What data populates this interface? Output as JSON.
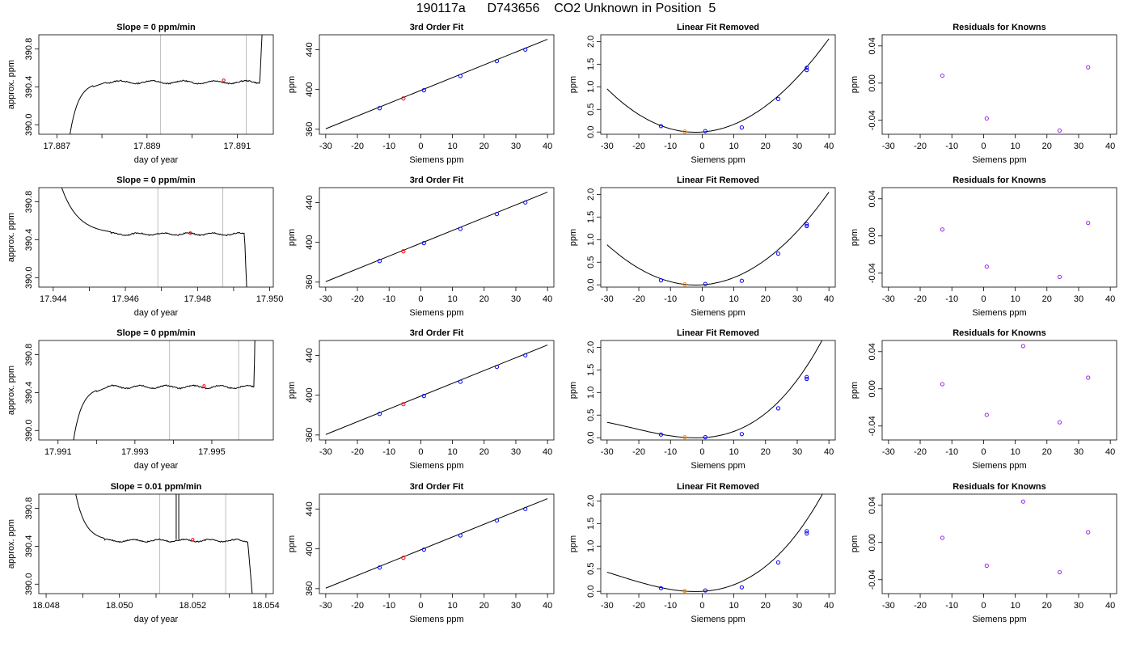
{
  "page": {
    "title": "190117a      D743656    CO2 Unknown in Position  5"
  },
  "colors": {
    "line": "#000000",
    "known_point": "#0000ff",
    "unknown_point": "#ff0000",
    "residual_point": "#a020f0",
    "removed_point": "#ff8c00",
    "window_line": "#bebebe"
  },
  "chart_data": [
    {
      "type": "line",
      "title": "Slope =  0  ppm/min",
      "xlabel": "day of year",
      "ylabel": "approx. ppm",
      "xlim": [
        17.8866,
        17.8918
      ],
      "ylim": [
        389.9,
        390.95
      ],
      "xticks": [
        17.887,
        17.889,
        17.891
      ],
      "xtick_labels": [
        "17.887",
        "17.889",
        "17.891"
      ],
      "minor_xticks": [
        17.888,
        17.89
      ],
      "yticks": [
        390.0,
        390.4,
        390.8
      ],
      "ytick_labels": [
        "390.0",
        "390.4",
        "390.8"
      ],
      "window": [
        17.8893,
        17.8912
      ],
      "unknown_point": [
        17.8907,
        390.47
      ],
      "trace": {
        "start": 17.8872,
        "rise_end": 17.8878,
        "flat_start": 17.8881,
        "flat_end": 17.8915,
        "end": 17.89162,
        "base": 390.45,
        "amp": 0.015
      }
    },
    {
      "type": "scatter",
      "title": "3rd Order Fit",
      "xlabel": "Siemens ppm",
      "ylabel": "ppm",
      "xlim": [
        -32,
        42
      ],
      "ylim": [
        355,
        455
      ],
      "xticks": [
        -30,
        -20,
        -10,
        0,
        10,
        20,
        30,
        40
      ],
      "xtick_labels": [
        "-30",
        "-20",
        "-10",
        "0",
        "10",
        "20",
        "30",
        "40"
      ],
      "yticks": [
        360,
        400,
        440
      ],
      "ytick_labels": [
        "360",
        "400",
        "440"
      ],
      "fit_line": [
        [
          -30,
          360.5
        ],
        [
          40,
          450.5
        ]
      ],
      "known_points": [
        [
          -13,
          381.2
        ],
        [
          1,
          399.2
        ],
        [
          12.5,
          413.5
        ],
        [
          24,
          428.5
        ],
        [
          33,
          440.1
        ]
      ],
      "unknown_points": [
        [
          -5.5,
          391.0
        ]
      ]
    },
    {
      "type": "scatter",
      "title": "Linear Fit Removed",
      "xlabel": "Siemens ppm",
      "ylabel": "ppm",
      "xlim": [
        -32,
        42
      ],
      "ylim": [
        -0.05,
        2.15
      ],
      "xticks": [
        -30,
        -20,
        -10,
        0,
        10,
        20,
        30,
        40
      ],
      "xtick_labels": [
        "-30",
        "-20",
        "-10",
        "0",
        "10",
        "20",
        "30",
        "40"
      ],
      "yticks": [
        0,
        0.5,
        1,
        1.5,
        2
      ],
      "ytick_labels": [
        "0.0",
        "0.5",
        "1.0",
        "1.5",
        "2.0"
      ],
      "curve": [
        0.0,
        0.005,
        0.0012,
        -9e-07
      ],
      "known_points": [
        [
          -13,
          0.13
        ],
        [
          1,
          0.02
        ],
        [
          12.5,
          0.1
        ],
        [
          24,
          0.73
        ],
        [
          33,
          1.37
        ],
        [
          33,
          1.42
        ]
      ],
      "unknown_points": [
        [
          -5.5,
          0.01
        ]
      ]
    },
    {
      "type": "scatter",
      "title": "Residuals for Knowns",
      "xlabel": "Siemens ppm",
      "ylabel": "ppm",
      "xlim": [
        -32,
        42
      ],
      "ylim": [
        -0.055,
        0.052
      ],
      "xticks": [
        -30,
        -20,
        -10,
        0,
        10,
        20,
        30,
        40
      ],
      "xtick_labels": [
        "-30",
        "-20",
        "-10",
        "0",
        "10",
        "20",
        "30",
        "40"
      ],
      "yticks": [
        -0.04,
        0,
        0.04
      ],
      "ytick_labels": [
        "-0.04",
        "0.00",
        "0.04"
      ],
      "points": [
        [
          -13,
          0.008
        ],
        [
          1,
          -0.038
        ],
        [
          24,
          -0.051
        ],
        [
          33,
          0.017
        ]
      ]
    },
    {
      "type": "line",
      "title": "Slope =  0  ppm/min",
      "xlabel": "day of year",
      "ylabel": "approx. ppm",
      "xlim": [
        17.9436,
        17.9501
      ],
      "ylim": [
        389.9,
        390.95
      ],
      "xticks": [
        17.944,
        17.946,
        17.948,
        17.95
      ],
      "xtick_labels": [
        "17.944",
        "17.946",
        "17.948",
        "17.950"
      ],
      "minor_xticks": [
        17.945,
        17.947,
        17.949
      ],
      "yticks": [
        390.0,
        390.4,
        390.8
      ],
      "ytick_labels": [
        "390.0",
        "390.4",
        "390.8"
      ],
      "window": [
        17.9469,
        17.9487
      ],
      "unknown_point": [
        17.9478,
        390.47
      ],
      "trace": {
        "start": 17.9437,
        "fall_end": 17.9456,
        "flat_end": 17.9493,
        "end": 17.9494,
        "base": 390.46,
        "amp": 0.012,
        "mode": "fall"
      }
    },
    {
      "type": "scatter",
      "title": "3rd Order Fit",
      "xlabel": "Siemens ppm",
      "ylabel": "ppm",
      "xlim": [
        -32,
        42
      ],
      "ylim": [
        355,
        455
      ],
      "xticks": [
        -30,
        -20,
        -10,
        0,
        10,
        20,
        30,
        40
      ],
      "xtick_labels": [
        "-30",
        "-20",
        "-10",
        "0",
        "10",
        "20",
        "30",
        "40"
      ],
      "yticks": [
        360,
        400,
        440
      ],
      "ytick_labels": [
        "360",
        "400",
        "440"
      ],
      "fit_line": [
        [
          -30,
          360.5
        ],
        [
          40,
          450.5
        ]
      ],
      "known_points": [
        [
          -13,
          381.2
        ],
        [
          1,
          399.2
        ],
        [
          12.5,
          413.5
        ],
        [
          24,
          428.5
        ],
        [
          33,
          440.1
        ]
      ],
      "unknown_points": [
        [
          -5.5,
          391.0
        ]
      ]
    },
    {
      "type": "scatter",
      "title": "Linear Fit Removed",
      "xlabel": "Siemens ppm",
      "ylabel": "ppm",
      "xlim": [
        -32,
        42
      ],
      "ylim": [
        -0.05,
        2.15
      ],
      "xticks": [
        -30,
        -20,
        -10,
        0,
        10,
        20,
        30,
        40
      ],
      "xtick_labels": [
        "-30",
        "-20",
        "-10",
        "0",
        "10",
        "20",
        "30",
        "40"
      ],
      "yticks": [
        0,
        0.5,
        1,
        1.5,
        2
      ],
      "ytick_labels": [
        "0.0",
        "0.5",
        "1.0",
        "1.5",
        "2.0"
      ],
      "curve": [
        0.0,
        0.0045,
        0.00115,
        5e-07
      ],
      "known_points": [
        [
          -13,
          0.1
        ],
        [
          1,
          0.02
        ],
        [
          12.5,
          0.09
        ],
        [
          24,
          0.69
        ],
        [
          33,
          1.3
        ],
        [
          33,
          1.34
        ]
      ],
      "unknown_points": [
        [
          -5.5,
          0.01
        ]
      ]
    },
    {
      "type": "scatter",
      "title": "Residuals for Knowns",
      "xlabel": "Siemens ppm",
      "ylabel": "ppm",
      "xlim": [
        -32,
        42
      ],
      "ylim": [
        -0.055,
        0.052
      ],
      "xticks": [
        -30,
        -20,
        -10,
        0,
        10,
        20,
        30,
        40
      ],
      "xtick_labels": [
        "-30",
        "-20",
        "-10",
        "0",
        "10",
        "20",
        "30",
        "40"
      ],
      "yticks": [
        -0.04,
        0,
        0.04
      ],
      "ytick_labels": [
        "-0.04",
        "0.00",
        "0.04"
      ],
      "points": [
        [
          -13,
          0.007
        ],
        [
          1,
          -0.033
        ],
        [
          24,
          -0.044
        ],
        [
          33,
          0.014
        ]
      ]
    },
    {
      "type": "line",
      "title": "Slope =  0  ppm/min",
      "xlabel": "day of year",
      "ylabel": "approx. ppm",
      "xlim": [
        17.9905,
        17.9966
      ],
      "ylim": [
        389.9,
        390.95
      ],
      "xticks": [
        17.991,
        17.993,
        17.995
      ],
      "xtick_labels": [
        "17.991",
        "17.993",
        "17.995"
      ],
      "minor_xticks": [
        17.992,
        17.994
      ],
      "yticks": [
        390.0,
        390.4,
        390.8
      ],
      "ytick_labels": [
        "390.0",
        "390.4",
        "390.8"
      ],
      "window": [
        17.9939,
        17.9957
      ],
      "unknown_point": [
        17.9948,
        390.47
      ],
      "trace": {
        "start": 17.9913,
        "rise_end": 17.992,
        "flat_start": 17.9923,
        "flat_end": 17.9961,
        "end": 17.99615,
        "base": 390.46,
        "amp": 0.015
      }
    },
    {
      "type": "scatter",
      "title": "3rd Order Fit",
      "xlabel": "Siemens ppm",
      "ylabel": "ppm",
      "xlim": [
        -32,
        42
      ],
      "ylim": [
        355,
        455
      ],
      "xticks": [
        -30,
        -20,
        -10,
        0,
        10,
        20,
        30,
        40
      ],
      "xtick_labels": [
        "-30",
        "-20",
        "-10",
        "0",
        "10",
        "20",
        "30",
        "40"
      ],
      "yticks": [
        360,
        400,
        440
      ],
      "ytick_labels": [
        "360",
        "400",
        "440"
      ],
      "fit_line": [
        [
          -30,
          360.5
        ],
        [
          40,
          450.5
        ]
      ],
      "known_points": [
        [
          -13,
          381.2
        ],
        [
          1,
          399.2
        ],
        [
          12.5,
          413.5
        ],
        [
          24,
          428.5
        ],
        [
          33,
          440.1
        ]
      ],
      "unknown_points": [
        [
          -5.5,
          391.0
        ]
      ]
    },
    {
      "type": "scatter",
      "title": "Linear Fit Removed",
      "xlabel": "Siemens ppm",
      "ylabel": "ppm",
      "xlim": [
        -32,
        42
      ],
      "ylim": [
        -0.05,
        2.15
      ],
      "xticks": [
        -30,
        -20,
        -10,
        0,
        10,
        20,
        30,
        40
      ],
      "xtick_labels": [
        "-30",
        "-20",
        "-10",
        "0",
        "10",
        "20",
        "30",
        "40"
      ],
      "yticks": [
        0,
        0.5,
        1,
        1.5,
        2
      ],
      "ytick_labels": [
        "0.0",
        "0.5",
        "1.0",
        "1.5",
        "2.0"
      ],
      "curve": [
        0.0,
        0.0035,
        0.0009,
        1.35e-05
      ],
      "known_points": [
        [
          -13,
          0.07
        ],
        [
          1,
          0.01
        ],
        [
          12.5,
          0.08
        ],
        [
          24,
          0.65
        ],
        [
          33,
          1.3
        ],
        [
          33,
          1.34
        ]
      ],
      "unknown_points": [
        [
          -5.5,
          0.01
        ]
      ]
    },
    {
      "type": "scatter",
      "title": "Residuals for Knowns",
      "xlabel": "Siemens ppm",
      "ylabel": "ppm",
      "xlim": [
        -32,
        42
      ],
      "ylim": [
        -0.055,
        0.052
      ],
      "xticks": [
        -30,
        -20,
        -10,
        0,
        10,
        20,
        30,
        40
      ],
      "xtick_labels": [
        "-30",
        "-20",
        "-10",
        "0",
        "10",
        "20",
        "30",
        "40"
      ],
      "yticks": [
        -0.04,
        0,
        0.04
      ],
      "ytick_labels": [
        "-0.04",
        "0.00",
        "0.04"
      ],
      "points": [
        [
          -13,
          0.005
        ],
        [
          1,
          -0.028
        ],
        [
          12.5,
          0.046
        ],
        [
          24,
          -0.036
        ],
        [
          33,
          0.012
        ]
      ]
    },
    {
      "type": "line",
      "title": "Slope =  0.01  ppm/min",
      "xlabel": "day of year",
      "ylabel": "approx. ppm",
      "xlim": [
        17.9478,
        18.0542
      ],
      "ylim": [
        389.9,
        390.95
      ],
      "xlim_override": [
        18.0478,
        18.0542
      ],
      "xticks": [
        18.048,
        18.05,
        18.052,
        18.054
      ],
      "xtick_labels": [
        "18.048",
        "18.050",
        "18.052",
        "18.054"
      ],
      "minor_xticks": [
        18.049,
        18.051,
        18.053
      ],
      "yticks": [
        390.0,
        390.4,
        390.8
      ],
      "ytick_labels": [
        "390.0",
        "390.4",
        "390.8"
      ],
      "window": [
        18.0511,
        18.0529
      ],
      "unknown_point": [
        18.052,
        390.47
      ],
      "spike": [
        18.05155,
        18.05162
      ],
      "trace": {
        "start": 18.0485,
        "fall_end": 18.0496,
        "flat_end": 18.0535,
        "end": 18.0537,
        "base": 390.46,
        "amp": 0.012,
        "mode": "fall"
      }
    },
    {
      "type": "scatter",
      "title": "3rd Order Fit",
      "xlabel": "Siemens ppm",
      "ylabel": "ppm",
      "xlim": [
        -32,
        42
      ],
      "ylim": [
        355,
        455
      ],
      "xticks": [
        -30,
        -20,
        -10,
        0,
        10,
        20,
        30,
        40
      ],
      "xtick_labels": [
        "-30",
        "-20",
        "-10",
        "0",
        "10",
        "20",
        "30",
        "40"
      ],
      "yticks": [
        360,
        400,
        440
      ],
      "ytick_labels": [
        "360",
        "400",
        "440"
      ],
      "fit_line": [
        [
          -30,
          360.5
        ],
        [
          40,
          450.5
        ]
      ],
      "known_points": [
        [
          -13,
          381.2
        ],
        [
          1,
          399.2
        ],
        [
          12.5,
          413.5
        ],
        [
          24,
          428.5
        ],
        [
          33,
          440.1
        ]
      ],
      "unknown_points": [
        [
          -5.5,
          391.0
        ]
      ]
    },
    {
      "type": "scatter",
      "title": "Linear Fit Removed",
      "xlabel": "Siemens ppm",
      "ylabel": "ppm",
      "xlim": [
        -32,
        42
      ],
      "ylim": [
        -0.05,
        2.15
      ],
      "xticks": [
        -30,
        -20,
        -10,
        0,
        10,
        20,
        30,
        40
      ],
      "xtick_labels": [
        "-30",
        "-20",
        "-10",
        "0",
        "10",
        "20",
        "30",
        "40"
      ],
      "yticks": [
        0,
        0.5,
        1,
        1.5,
        2
      ],
      "ytick_labels": [
        "0.0",
        "0.5",
        "1.0",
        "1.5",
        "2.0"
      ],
      "curve": [
        0.0,
        0.004,
        0.00095,
        1.15e-05
      ],
      "known_points": [
        [
          -13,
          0.07
        ],
        [
          1,
          0.02
        ],
        [
          12.5,
          0.09
        ],
        [
          24,
          0.64
        ],
        [
          33,
          1.28
        ],
        [
          33,
          1.33
        ]
      ],
      "unknown_points": [
        [
          -5.5,
          0.01
        ]
      ]
    },
    {
      "type": "scatter",
      "title": "Residuals for Knowns",
      "xlabel": "Siemens ppm",
      "ylabel": "ppm",
      "xlim": [
        -32,
        42
      ],
      "ylim": [
        -0.055,
        0.052
      ],
      "xticks": [
        -30,
        -20,
        -10,
        0,
        10,
        20,
        30,
        40
      ],
      "xtick_labels": [
        "-30",
        "-20",
        "-10",
        "0",
        "10",
        "20",
        "30",
        "40"
      ],
      "yticks": [
        -0.04,
        0,
        0.04
      ],
      "ytick_labels": [
        "-0.04",
        "0.00",
        "0.04"
      ],
      "points": [
        [
          -13,
          0.005
        ],
        [
          1,
          -0.025
        ],
        [
          12.5,
          0.044
        ],
        [
          24,
          -0.032
        ],
        [
          33,
          0.011
        ]
      ]
    }
  ]
}
